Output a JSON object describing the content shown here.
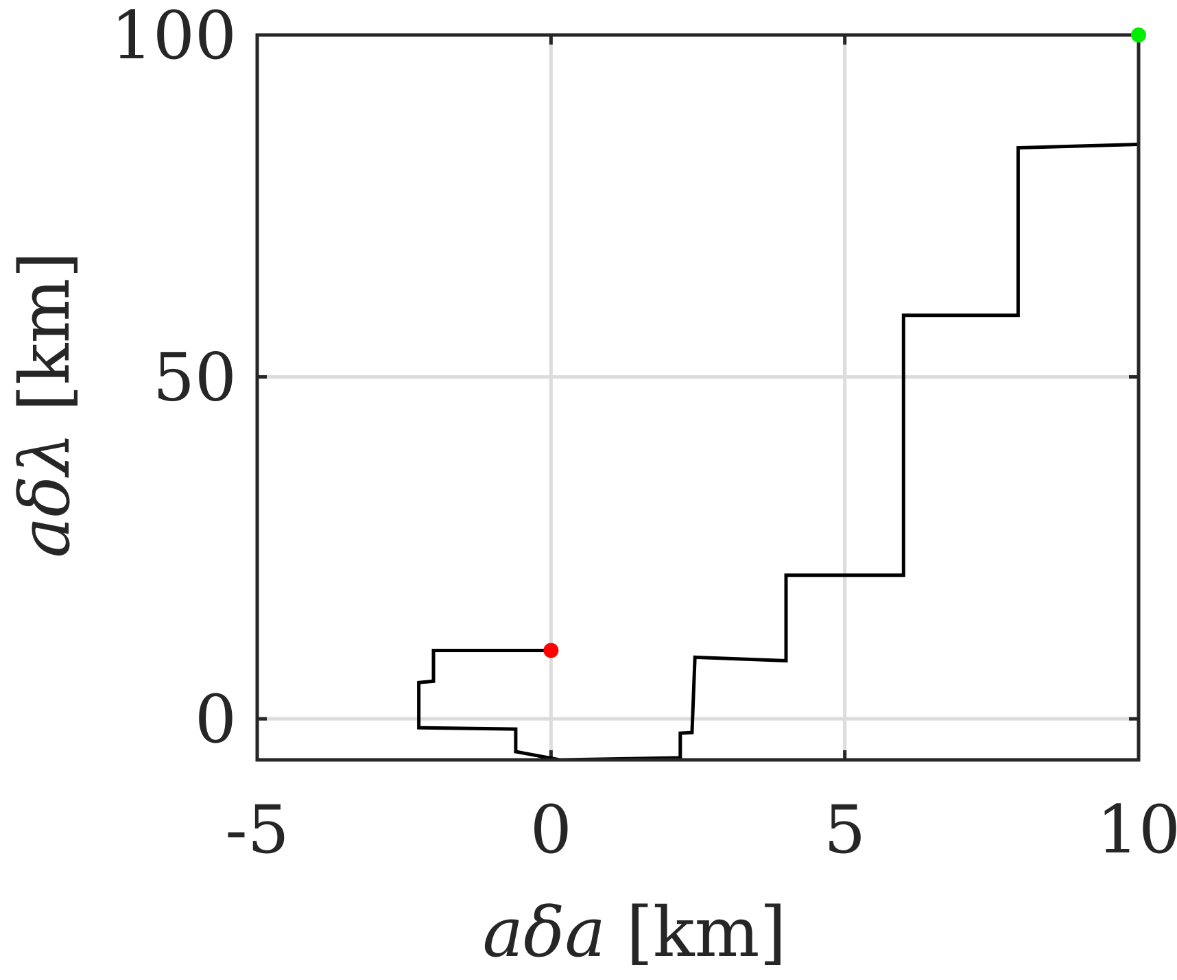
{
  "chart_data": {
    "type": "line",
    "title": "",
    "xlabel": "aδa [km]",
    "ylabel": "aδλ [km]",
    "xlabel_parts": {
      "symbol": "aδa",
      "unit": "[km]"
    },
    "ylabel_parts": {
      "symbol": "aδλ",
      "unit": "[km]"
    },
    "xlim": [
      -5,
      10
    ],
    "ylim": [
      -6,
      100
    ],
    "xticks": [
      -5,
      0,
      5,
      10
    ],
    "yticks": [
      0,
      50,
      100
    ],
    "xtick_labels": [
      "-5",
      "0",
      "5",
      "10"
    ],
    "ytick_labels": [
      "0",
      "50",
      "100"
    ],
    "grid": true,
    "legend": "none",
    "series": [
      {
        "color": "#000000",
        "x": [
          0,
          -2,
          -2,
          -2.25,
          -2.25,
          -0.6,
          -0.6,
          0.15,
          2.2,
          2.2,
          2.4,
          2.45,
          4.0,
          4.0,
          6.0,
          6.0,
          7.95,
          7.95,
          10.0,
          10.0
        ],
        "y": [
          10,
          10,
          5.5,
          5.3,
          -1.3,
          -1.5,
          -4.8,
          -6.0,
          -5.7,
          -2.1,
          -2.0,
          9.0,
          8.5,
          21.0,
          21.0,
          59.0,
          59.0,
          83.5,
          84.0,
          100
        ]
      }
    ],
    "markers": [
      {
        "name": "start",
        "x": 0,
        "y": 10,
        "color": "#ff0000"
      },
      {
        "name": "end",
        "x": 10,
        "y": 100,
        "color": "#00ee00"
      }
    ]
  }
}
